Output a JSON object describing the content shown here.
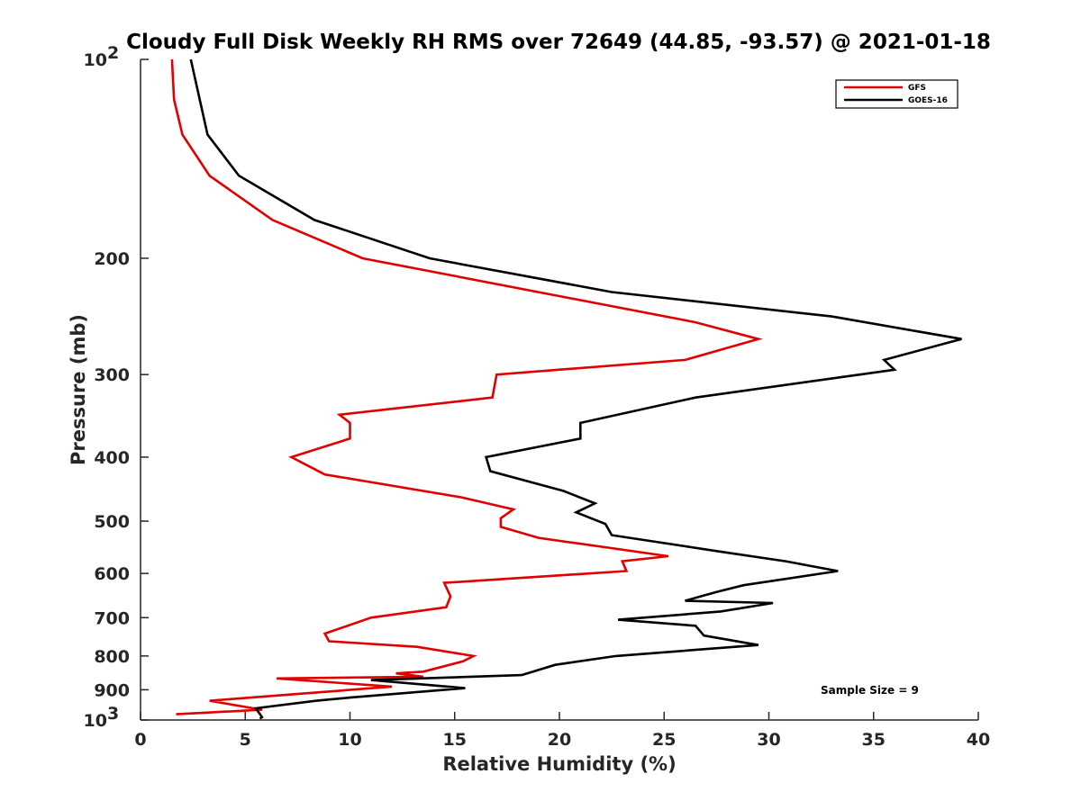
{
  "chart_data": {
    "type": "line",
    "title": "Cloudy Full Disk Weekly RH RMS over 72649 (44.85, -93.57) @ 2021-01-18",
    "xlabel": "Relative Humidity (%)",
    "ylabel": "Pressure (mb)",
    "xlim": [
      0,
      40
    ],
    "ylim": [
      100,
      1000
    ],
    "y_scale": "log",
    "y_reversed": true,
    "x_ticks": [
      "0",
      "5",
      "10",
      "15",
      "20",
      "25",
      "30",
      "35",
      "40"
    ],
    "y_ticks": [
      {
        "value": 100,
        "label": "10",
        "sup": "2"
      },
      {
        "value": 200,
        "label": "200",
        "sup": ""
      },
      {
        "value": 300,
        "label": "300",
        "sup": ""
      },
      {
        "value": 400,
        "label": "400",
        "sup": ""
      },
      {
        "value": 500,
        "label": "500",
        "sup": ""
      },
      {
        "value": 600,
        "label": "600",
        "sup": ""
      },
      {
        "value": 700,
        "label": "700",
        "sup": ""
      },
      {
        "value": 800,
        "label": "800",
        "sup": ""
      },
      {
        "value": 900,
        "label": "900",
        "sup": ""
      },
      {
        "value": 1000,
        "label": "10",
        "sup": "3"
      }
    ],
    "grid": false,
    "legend_position": "top-right",
    "annotation": "Sample Size = 9",
    "series": [
      {
        "name": "GFS",
        "color": "#e00000",
        "points": [
          [
            1.5,
            100
          ],
          [
            1.6,
            115
          ],
          [
            2.0,
            130
          ],
          [
            3.3,
            150
          ],
          [
            6.3,
            175
          ],
          [
            10.6,
            200
          ],
          [
            26.5,
            250
          ],
          [
            29.5,
            265
          ],
          [
            26.0,
            285
          ],
          [
            17.0,
            300
          ],
          [
            16.8,
            325
          ],
          [
            9.5,
            345
          ],
          [
            10.0,
            355
          ],
          [
            10.0,
            375
          ],
          [
            7.2,
            400
          ],
          [
            8.8,
            425
          ],
          [
            15.3,
            460
          ],
          [
            17.8,
            480
          ],
          [
            17.2,
            495
          ],
          [
            17.2,
            510
          ],
          [
            19.0,
            530
          ],
          [
            25.2,
            565
          ],
          [
            23.0,
            575
          ],
          [
            23.2,
            595
          ],
          [
            14.5,
            620
          ],
          [
            14.8,
            650
          ],
          [
            14.6,
            675
          ],
          [
            11.0,
            700
          ],
          [
            8.8,
            740
          ],
          [
            9.0,
            760
          ],
          [
            13.2,
            775
          ],
          [
            15.9,
            800
          ],
          [
            15.4,
            815
          ],
          [
            13.5,
            845
          ],
          [
            12.2,
            850
          ],
          [
            13.5,
            860
          ],
          [
            6.5,
            865
          ],
          [
            12.0,
            890
          ],
          [
            3.3,
            935
          ],
          [
            5.8,
            965
          ],
          [
            1.7,
            980
          ]
        ]
      },
      {
        "name": "GOES-16",
        "color": "#000000",
        "points": [
          [
            2.4,
            100
          ],
          [
            3.2,
            130
          ],
          [
            4.7,
            150
          ],
          [
            8.3,
            175
          ],
          [
            13.8,
            200
          ],
          [
            22.5,
            225
          ],
          [
            33.0,
            245
          ],
          [
            39.2,
            265
          ],
          [
            35.5,
            285
          ],
          [
            36.0,
            295
          ],
          [
            26.5,
            325
          ],
          [
            21.0,
            355
          ],
          [
            21.0,
            375
          ],
          [
            16.5,
            400
          ],
          [
            16.7,
            420
          ],
          [
            20.2,
            450
          ],
          [
            21.7,
            470
          ],
          [
            20.8,
            485
          ],
          [
            22.2,
            505
          ],
          [
            22.5,
            525
          ],
          [
            27.5,
            555
          ],
          [
            30.8,
            575
          ],
          [
            33.3,
            595
          ],
          [
            28.8,
            625
          ],
          [
            27.5,
            640
          ],
          [
            26.0,
            660
          ],
          [
            30.2,
            665
          ],
          [
            27.7,
            685
          ],
          [
            22.8,
            705
          ],
          [
            26.5,
            720
          ],
          [
            26.9,
            745
          ],
          [
            29.5,
            770
          ],
          [
            22.7,
            800
          ],
          [
            19.8,
            825
          ],
          [
            18.2,
            855
          ],
          [
            11.0,
            870
          ],
          [
            15.5,
            895
          ],
          [
            10.0,
            925
          ],
          [
            8.4,
            935
          ],
          [
            5.5,
            960
          ],
          [
            5.8,
            990
          ],
          [
            5.7,
            995
          ]
        ]
      }
    ]
  }
}
